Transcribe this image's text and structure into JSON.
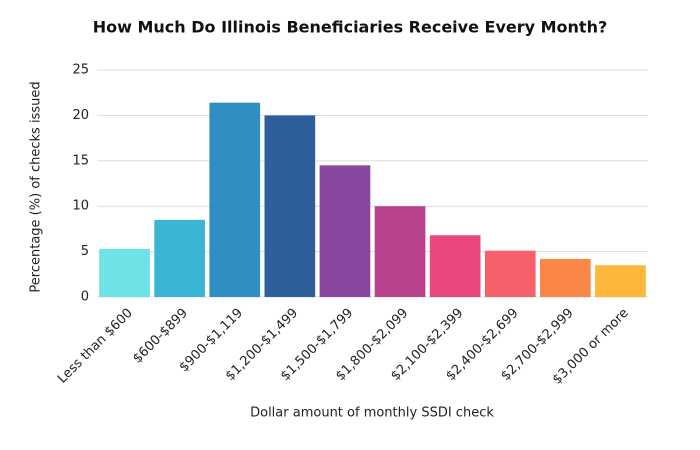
{
  "chart_data": {
    "type": "bar",
    "title": "How Much Do Illinois Beneficiaries Receive Every Month?",
    "x_label": "Dollar amount of monthly SSDI check",
    "y_label": "Percentage (%) of checks issued",
    "categories": [
      "Less than $600",
      "$600-$899",
      "$900-$1,119",
      "$1,200-$1,499",
      "$1,500-$1,799",
      "$1,800-$2,099",
      "$2,100-$2,399",
      "$2,400-$2,699",
      "$2,700-$2,999",
      "$3,000 or more"
    ],
    "values": [
      5.3,
      8.5,
      21.4,
      20.0,
      14.5,
      10.0,
      6.8,
      5.1,
      4.2,
      3.5
    ],
    "colors": [
      "#6de3e8",
      "#3bb5d4",
      "#2e8fc0",
      "#2f5f9a",
      "#87479e",
      "#b9418e",
      "#e8487e",
      "#f5606a",
      "#fb8746",
      "#fdb83c"
    ],
    "ylim": [
      0,
      25
    ],
    "yticks": [
      0,
      5,
      10,
      15,
      20,
      25
    ],
    "grid": true
  }
}
